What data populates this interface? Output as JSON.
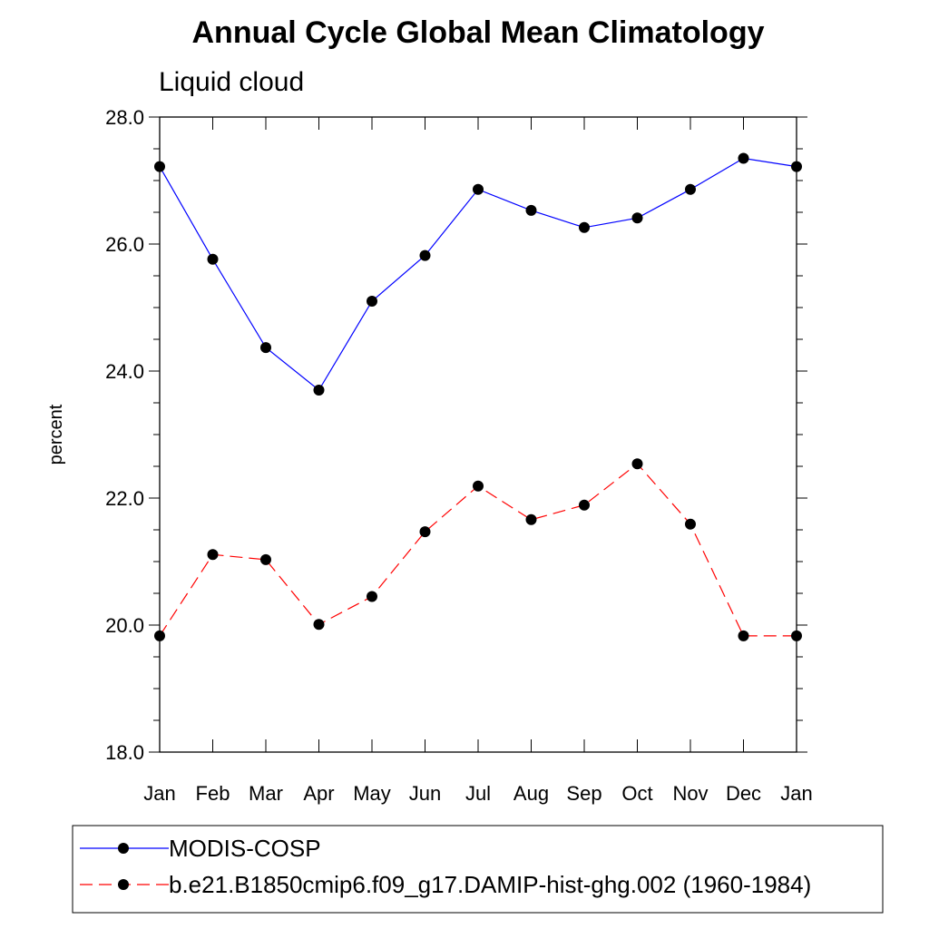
{
  "chart_data": {
    "type": "line",
    "title": "Annual Cycle Global Mean Climatology",
    "subtitle": "Liquid cloud",
    "xlabel": "",
    "ylabel": "percent",
    "categories": [
      "Jan",
      "Feb",
      "Mar",
      "Apr",
      "May",
      "Jun",
      "Jul",
      "Aug",
      "Sep",
      "Oct",
      "Nov",
      "Dec",
      "Jan"
    ],
    "ylim": [
      18.0,
      28.0
    ],
    "yticks": [
      "18.0",
      "20.0",
      "22.0",
      "24.0",
      "26.0",
      "28.0"
    ],
    "grid": false,
    "legend_position": "bottom",
    "series": [
      {
        "name": "MODIS-COSP",
        "color": "#0000ff",
        "dash": "solid",
        "values": [
          27.22,
          25.76,
          24.37,
          23.7,
          25.1,
          25.82,
          26.86,
          26.53,
          26.26,
          26.41,
          26.86,
          27.35,
          27.22
        ]
      },
      {
        "name": "b.e21.B1850cmip6.f09_g17.DAMIP-hist-ghg.002 (1960-1984)",
        "color": "#ff0000",
        "dash": "dashed",
        "values": [
          19.83,
          21.11,
          21.03,
          20.01,
          20.45,
          21.47,
          22.19,
          21.66,
          21.89,
          22.54,
          21.59,
          19.83,
          19.83
        ]
      }
    ]
  }
}
